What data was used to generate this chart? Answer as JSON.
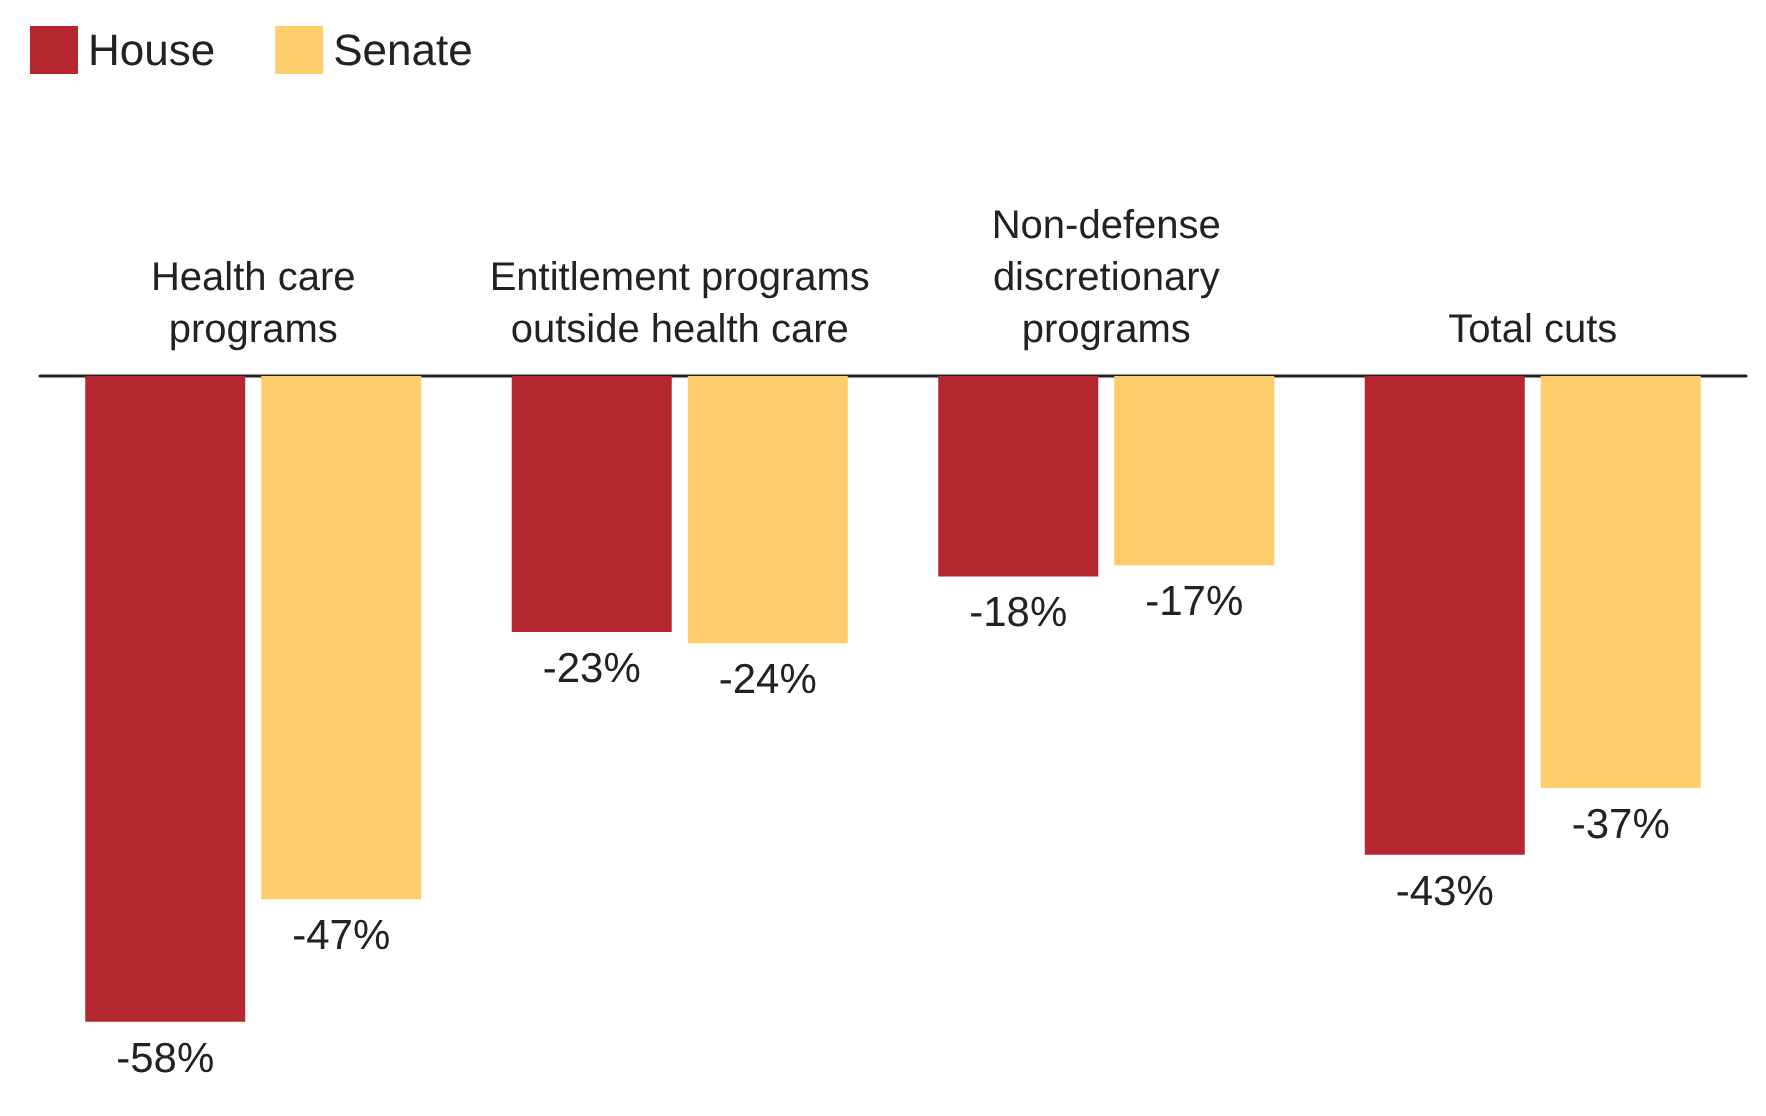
{
  "chart_data": {
    "type": "bar",
    "categories": [
      "Health care\nprograms",
      "Entitlement programs\noutside health care",
      "Non-defense\ndiscretionary\nprograms",
      "Total cuts"
    ],
    "series": [
      {
        "name": "House",
        "color": "#b5262e",
        "values": [
          -58,
          -23,
          -18,
          -43
        ],
        "value_labels": [
          "-58%",
          "-23%",
          "-18%",
          "-43%"
        ]
      },
      {
        "name": "Senate",
        "color": "#fecd6b",
        "values": [
          -47,
          -24,
          -17,
          -37
        ],
        "value_labels": [
          "-47%",
          "-24%",
          "-17%",
          "-37%"
        ]
      }
    ],
    "legend": "top left",
    "grid": false
  }
}
